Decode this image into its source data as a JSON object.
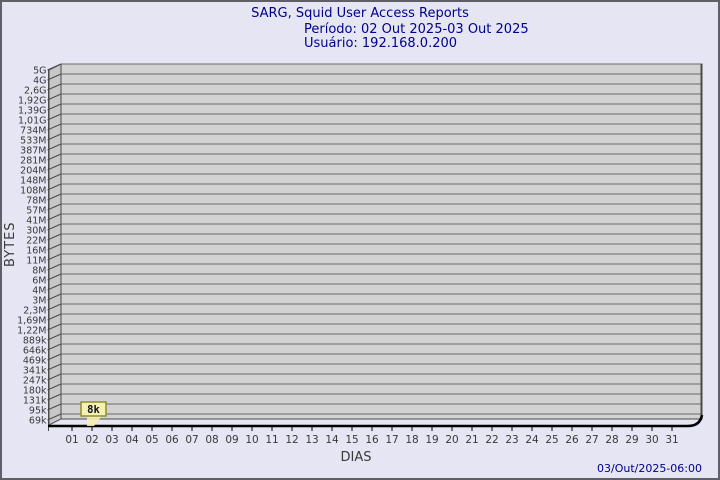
{
  "header": {
    "title": "SARG, Squid User Access Reports",
    "period": "Período: 02 Out 2025-03 Out 2025",
    "user": "Usuário: 192.168.0.200"
  },
  "axes": {
    "y_label": "BYTES",
    "x_label": "DIAS"
  },
  "footer": {
    "timestamp": "03/Out/2025-06:00"
  },
  "colors": {
    "background": "#e5e5f3",
    "frame_border": "#5f5f68",
    "title_text": "#00008b",
    "axis_text": "#3a3a3a",
    "plot_fill": "#d2d2d2",
    "wall_fill": "#c7c7c7",
    "grid_line": "#6b6b6b",
    "edge_line": "#4a4a4a",
    "baseline": "#000000",
    "flag_fill": "#f5f0b4",
    "flag_border": "#8f8f2e",
    "flag_text": "#111111"
  },
  "chart_data": {
    "type": "bar",
    "title": "SARG, Squid User Access Reports",
    "subtitle": "Período: 02 Out 2025-03 Out 2025",
    "user": "Usuário: 192.168.0.200",
    "xlabel": "DIAS",
    "ylabel": "BYTES",
    "x_categories": [
      "01",
      "02",
      "03",
      "04",
      "05",
      "06",
      "07",
      "08",
      "09",
      "10",
      "11",
      "12",
      "13",
      "14",
      "15",
      "16",
      "17",
      "18",
      "19",
      "20",
      "21",
      "22",
      "23",
      "24",
      "25",
      "26",
      "27",
      "28",
      "29",
      "30",
      "31"
    ],
    "y_tick_labels": [
      "5G",
      "4G",
      "2,6G",
      "1,92G",
      "1,39G",
      "1,01G",
      "734M",
      "533M",
      "387M",
      "281M",
      "204M",
      "148M",
      "108M",
      "78M",
      "57M",
      "41M",
      "30M",
      "22M",
      "16M",
      "11M",
      "8M",
      "6M",
      "4M",
      "3M",
      "2,3M",
      "1,69M",
      "1,22M",
      "889k",
      "646k",
      "469k",
      "341k",
      "247k",
      "180k",
      "131k",
      "95k",
      "69k"
    ],
    "y_scale": "nonlinear (SARG log-like), top 5G to bottom 69k",
    "ylim": [
      "69k",
      "5G"
    ],
    "grid": true,
    "legend_position": "none",
    "points": [
      {
        "x": "02",
        "label": "8k",
        "value_bytes": 8000
      }
    ],
    "note": "Only day 02 has data (8k); value is below lowest axis tick so no visible bar, only a flag label.",
    "footer_timestamp": "03/Out/2025-06:00"
  }
}
